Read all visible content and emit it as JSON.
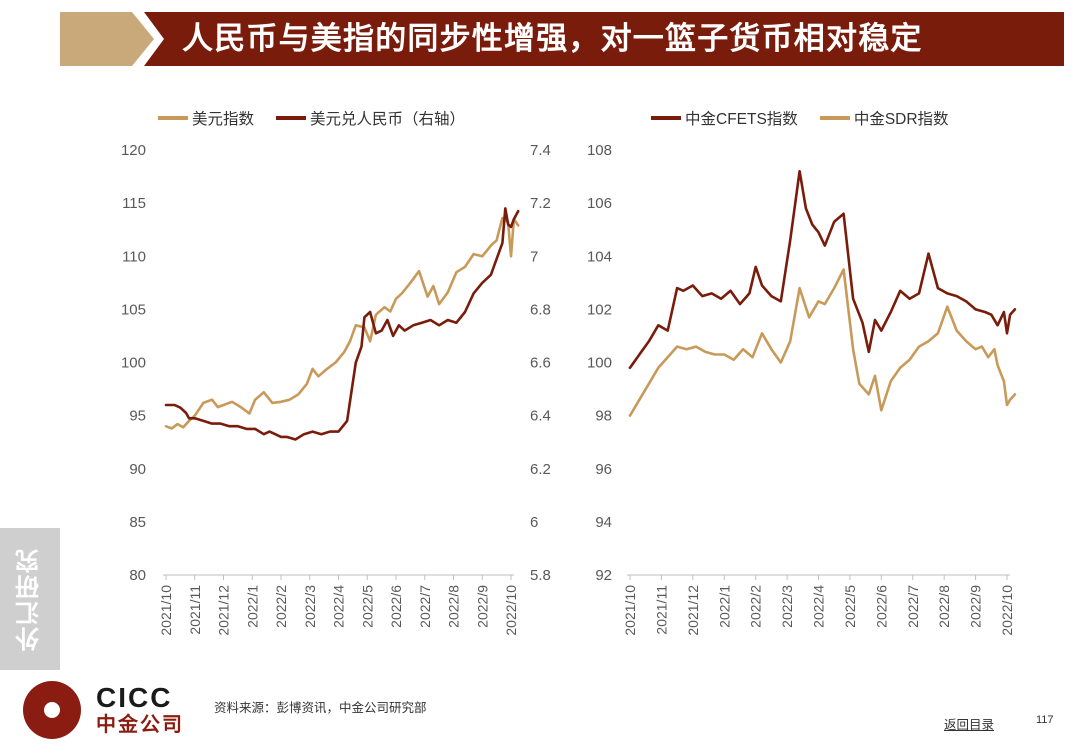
{
  "header": {
    "title": "人民币与美指的同步性增强，对一篮子货币相对稳定",
    "colors": {
      "bar": "#7a1c0c",
      "arrow": "#c9a97a"
    }
  },
  "colors": {
    "dark_series": "#7a1c0c",
    "light_series": "#c89a5a",
    "axis": "#bfbfbf",
    "text": "#595959"
  },
  "chart_data": [
    {
      "type": "line",
      "title": "",
      "legend": [
        "美元指数",
        "美元兑人民币（右轴）"
      ],
      "x_ticks": [
        "2021/10",
        "2021/11",
        "2021/12",
        "2022/1",
        "2022/2",
        "2022/3",
        "2022/4",
        "2022/5",
        "2022/6",
        "2022/7",
        "2022/8",
        "2022/9",
        "2022/10"
      ],
      "y_left": {
        "label": "",
        "range": [
          80,
          120
        ],
        "ticks": [
          "80",
          "85",
          "90",
          "95",
          "100",
          "105",
          "110",
          "115",
          "120"
        ]
      },
      "y_right": {
        "label": "",
        "range": [
          5.8,
          7.4
        ],
        "ticks": [
          "5.8",
          "6",
          "6.2",
          "6.4",
          "6.6",
          "6.8",
          "7",
          "7.2",
          "7.4"
        ]
      },
      "series": [
        {
          "name": "美元指数",
          "axis": "left",
          "color": "light",
          "x": [
            0,
            0.2,
            0.4,
            0.6,
            0.8,
            1.0,
            1.3,
            1.6,
            1.8,
            2.0,
            2.3,
            2.6,
            2.9,
            3.1,
            3.4,
            3.7,
            4.0,
            4.3,
            4.6,
            4.9,
            5.1,
            5.3,
            5.6,
            5.9,
            6.2,
            6.4,
            6.6,
            6.9,
            7.1,
            7.3,
            7.6,
            7.8,
            8.0,
            8.2,
            8.5,
            8.8,
            9.1,
            9.3,
            9.5,
            9.8,
            10.1,
            10.4,
            10.7,
            11.0,
            11.3,
            11.5,
            11.7,
            11.9,
            12.0,
            12.1,
            12.25
          ],
          "values": [
            94,
            93.8,
            94.2,
            93.9,
            94.5,
            95,
            96.2,
            96.5,
            95.8,
            96,
            96.3,
            95.8,
            95.2,
            96.5,
            97.2,
            96.2,
            96.3,
            96.5,
            97,
            98,
            99.4,
            98.7,
            99.4,
            100,
            101,
            102,
            103.5,
            103.3,
            102,
            104.5,
            105.2,
            104.8,
            106,
            106.5,
            107.5,
            108.6,
            106.2,
            107.2,
            105.5,
            106.6,
            108.5,
            109,
            110.2,
            110,
            111,
            111.5,
            113.6,
            113.2,
            110,
            113.5,
            112.9
          ]
        },
        {
          "name": "美元兑人民币（右轴）",
          "axis": "right",
          "color": "dark",
          "x": [
            0,
            0.3,
            0.5,
            0.7,
            0.8,
            1.0,
            1.3,
            1.6,
            1.9,
            2.2,
            2.5,
            2.8,
            3.1,
            3.4,
            3.6,
            3.8,
            4.0,
            4.2,
            4.5,
            4.8,
            5.1,
            5.4,
            5.7,
            6.0,
            6.3,
            6.6,
            6.8,
            6.9,
            7.1,
            7.3,
            7.5,
            7.7,
            7.9,
            8.1,
            8.3,
            8.6,
            8.9,
            9.2,
            9.5,
            9.8,
            10.1,
            10.4,
            10.7,
            11.0,
            11.3,
            11.5,
            11.7,
            11.8,
            11.9,
            12.0,
            12.1,
            12.25
          ],
          "values": [
            6.44,
            6.44,
            6.43,
            6.41,
            6.39,
            6.39,
            6.38,
            6.37,
            6.37,
            6.36,
            6.36,
            6.35,
            6.35,
            6.33,
            6.34,
            6.33,
            6.32,
            6.32,
            6.31,
            6.33,
            6.34,
            6.33,
            6.34,
            6.34,
            6.38,
            6.6,
            6.66,
            6.77,
            6.79,
            6.71,
            6.72,
            6.76,
            6.7,
            6.74,
            6.72,
            6.74,
            6.75,
            6.76,
            6.74,
            6.76,
            6.75,
            6.79,
            6.86,
            6.9,
            6.93,
            6.99,
            7.05,
            7.18,
            7.12,
            7.11,
            7.14,
            7.17
          ]
        }
      ]
    },
    {
      "type": "line",
      "title": "",
      "legend": [
        "中金CFETS指数",
        "中金SDR指数"
      ],
      "x_ticks": [
        "2021/10",
        "2021/11",
        "2021/12",
        "2022/1",
        "2022/2",
        "2022/3",
        "2022/4",
        "2022/5",
        "2022/6",
        "2022/7",
        "2022/8",
        "2022/9",
        "2022/10"
      ],
      "y_left": {
        "label": "",
        "range": [
          92,
          108
        ],
        "ticks": [
          "92",
          "94",
          "96",
          "98",
          "100",
          "102",
          "104",
          "106",
          "108"
        ]
      },
      "series": [
        {
          "name": "中金CFETS指数",
          "axis": "left",
          "color": "dark",
          "x": [
            0,
            0.3,
            0.6,
            0.9,
            1.2,
            1.5,
            1.7,
            2.0,
            2.3,
            2.6,
            2.9,
            3.2,
            3.5,
            3.8,
            4.0,
            4.2,
            4.5,
            4.8,
            5.1,
            5.4,
            5.6,
            5.8,
            6.0,
            6.2,
            6.5,
            6.8,
            7.1,
            7.4,
            7.6,
            7.8,
            8.0,
            8.3,
            8.6,
            8.9,
            9.2,
            9.5,
            9.8,
            10.1,
            10.4,
            10.7,
            11.0,
            11.3,
            11.5,
            11.7,
            11.9,
            12.0,
            12.1,
            12.25
          ],
          "values": [
            99.8,
            100.3,
            100.8,
            101.4,
            101.2,
            102.8,
            102.7,
            102.9,
            102.5,
            102.6,
            102.4,
            102.7,
            102.2,
            102.6,
            103.6,
            102.9,
            102.5,
            102.3,
            104.6,
            107.2,
            105.8,
            105.2,
            104.9,
            104.4,
            105.3,
            105.6,
            102.4,
            101.5,
            100.4,
            101.6,
            101.2,
            101.9,
            102.7,
            102.4,
            102.6,
            104.1,
            102.8,
            102.6,
            102.5,
            102.3,
            102,
            101.9,
            101.8,
            101.4,
            101.9,
            101.1,
            101.8,
            102.0
          ]
        },
        {
          "name": "中金SDR指数",
          "axis": "left",
          "color": "light",
          "x": [
            0,
            0.3,
            0.6,
            0.9,
            1.2,
            1.5,
            1.8,
            2.1,
            2.4,
            2.7,
            3.0,
            3.3,
            3.6,
            3.9,
            4.2,
            4.5,
            4.8,
            5.1,
            5.4,
            5.7,
            6.0,
            6.2,
            6.5,
            6.8,
            7.1,
            7.3,
            7.6,
            7.8,
            8.0,
            8.3,
            8.6,
            8.9,
            9.2,
            9.5,
            9.8,
            10.1,
            10.4,
            10.7,
            11.0,
            11.2,
            11.4,
            11.6,
            11.7,
            11.8,
            11.9,
            12.0,
            12.1,
            12.25
          ],
          "values": [
            98,
            98.6,
            99.2,
            99.8,
            100.2,
            100.6,
            100.5,
            100.6,
            100.4,
            100.3,
            100.3,
            100.1,
            100.5,
            100.2,
            101.1,
            100.5,
            100,
            100.8,
            102.8,
            101.7,
            102.3,
            102.2,
            102.8,
            103.5,
            100.5,
            99.2,
            98.8,
            99.5,
            98.2,
            99.3,
            99.8,
            100.1,
            100.6,
            100.8,
            101.1,
            102.1,
            101.2,
            100.8,
            100.5,
            100.6,
            100.2,
            100.5,
            99.9,
            99.6,
            99.3,
            98.4,
            98.6,
            98.8
          ]
        }
      ]
    }
  ],
  "side_tab": {
    "label": "外汇研究"
  },
  "footer": {
    "logo_en": "CICC",
    "logo_cn": "中金公司",
    "source": "资料来源：彭博资讯，中金公司研究部",
    "back_link": "返回目录",
    "page_number": "117"
  }
}
